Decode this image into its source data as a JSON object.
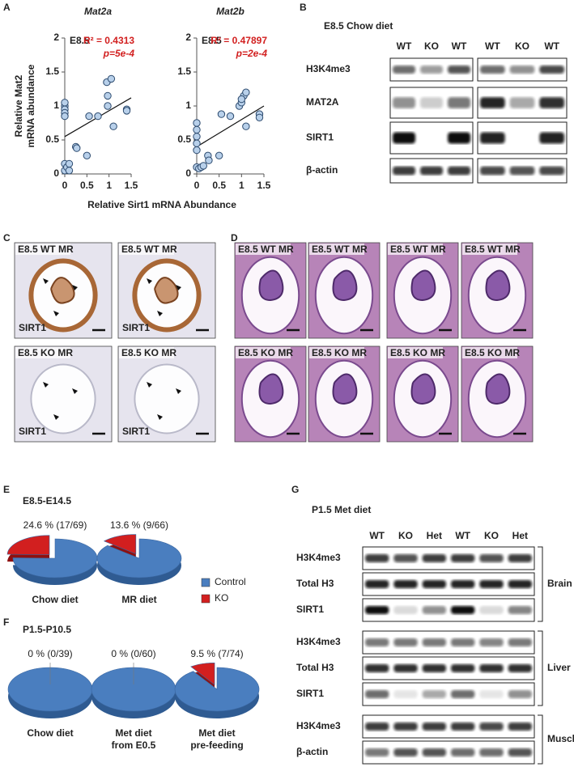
{
  "panel_labels": [
    "A",
    "B",
    "C",
    "D",
    "E",
    "F",
    "G"
  ],
  "chart_data": [
    {
      "type": "scatter",
      "title": "Mat2a",
      "annotation": "E8.5",
      "r2": "R² = 0.4313",
      "p": "p=5e-4",
      "ylabel_lines": [
        "Relative Mat2",
        "mRNA abundance"
      ],
      "xlabel": "Relative Sirt1 mRNA Abundance",
      "color": "#b8d0ea",
      "x": [
        0,
        0,
        0,
        0,
        0,
        0,
        0,
        0.05,
        0.1,
        0.1,
        0.25,
        0.27,
        0.5,
        0.55,
        0.75,
        0.95,
        0.97,
        1.05,
        0.97,
        1.1,
        1.4,
        1.4
      ],
      "values": [
        1.0,
        0.95,
        0.9,
        1.05,
        0.85,
        0.15,
        0.05,
        0.1,
        0.15,
        0.05,
        0.4,
        0.38,
        0.27,
        0.85,
        0.85,
        1.35,
        1.15,
        1.4,
        1.0,
        0.7,
        0.95,
        0.93
      ],
      "trendline": {
        "x": [
          0,
          1.5
        ],
        "y": [
          0.55,
          1.12
        ]
      },
      "xlim": [
        0,
        1.5
      ],
      "ylim": [
        0,
        2
      ],
      "xticks": [
        0,
        0.5,
        1,
        1.5
      ],
      "yticks": [
        0,
        0.5,
        1,
        1.5,
        2
      ]
    },
    {
      "type": "scatter",
      "title": "Mat2b",
      "annotation": "E8.5",
      "r2": "R² = 0.47897",
      "p": "p=2e-4",
      "color": "#b8d0ea",
      "x": [
        0,
        0,
        0,
        0,
        0,
        0,
        0.05,
        0.1,
        0.15,
        0.25,
        0.27,
        0.5,
        0.55,
        0.75,
        0.95,
        1.0,
        1.05,
        1.0,
        1.1,
        1.1,
        1.4,
        1.4
      ],
      "values": [
        0.75,
        0.65,
        0.55,
        0.45,
        0.35,
        0.1,
        0.08,
        0.1,
        0.12,
        0.27,
        0.2,
        0.27,
        0.88,
        0.85,
        1.0,
        1.05,
        1.15,
        1.1,
        1.2,
        0.7,
        0.88,
        0.83
      ],
      "trendline": {
        "x": [
          0,
          1.5
        ],
        "y": [
          0.4,
          1.0
        ]
      },
      "xlim": [
        0,
        1.5
      ],
      "ylim": [
        0,
        2
      ],
      "xticks": [
        0,
        0.5,
        1,
        1.5
      ],
      "yticks": [
        0,
        0.5,
        1,
        1.5,
        2
      ]
    },
    {
      "type": "pie",
      "title": "E8.5-E14.5",
      "label_lines": [
        "Chow diet"
      ],
      "categories": [
        "Control",
        "KO"
      ],
      "colors": [
        "#4a7ebf",
        "#d21f1f"
      ],
      "values": [
        75.4,
        24.6
      ],
      "value_labels": [
        null,
        "24.6 % (17/69)"
      ]
    },
    {
      "type": "pie",
      "label_lines": [
        "MR diet"
      ],
      "categories": [
        "Control",
        "KO"
      ],
      "legend": "right",
      "colors": [
        "#4a7ebf",
        "#d21f1f"
      ],
      "values": [
        86.4,
        13.6
      ],
      "value_labels": [
        null,
        "13.6 % (9/66)"
      ]
    },
    {
      "type": "pie",
      "title": "P1.5-P10.5",
      "label_lines": [
        "Chow diet"
      ],
      "categories": [
        "Control",
        "KO"
      ],
      "colors": [
        "#4a7ebf",
        "#d21f1f"
      ],
      "values": [
        100,
        0
      ],
      "value_labels": [
        null,
        "0 % (0/39)"
      ]
    },
    {
      "type": "pie",
      "label_lines": [
        "Met diet",
        "from E0.5"
      ],
      "categories": [
        "Control",
        "KO"
      ],
      "colors": [
        "#4a7ebf",
        "#d21f1f"
      ],
      "values": [
        100,
        0
      ],
      "value_labels": [
        null,
        "0 % (0/60)"
      ]
    },
    {
      "type": "pie",
      "label_lines": [
        "Met diet",
        "pre-feeding"
      ],
      "categories": [
        "Control",
        "KO"
      ],
      "colors": [
        "#4a7ebf",
        "#d21f1f"
      ],
      "values": [
        90.5,
        9.5
      ],
      "value_labels": [
        null,
        "9.5 % (7/74)"
      ]
    }
  ],
  "blot_b": {
    "title": "E8.5 Chow diet",
    "lanes": [
      "WT",
      "KO",
      "WT",
      "WT",
      "KO",
      "WT"
    ],
    "rows": [
      "H3K4me3",
      "MAT2A",
      "SIRT1",
      "β-actin"
    ]
  },
  "panel_c": {
    "images": [
      {
        "label": "E8.5 WT MR",
        "stain": "SIRT1"
      },
      {
        "label": "E8.5 WT MR",
        "stain": "SIRT1"
      },
      {
        "label": "E8.5 KO MR",
        "stain": "SIRT1"
      },
      {
        "label": "E8.5 KO MR",
        "stain": "SIRT1"
      }
    ]
  },
  "panel_d": {
    "images": [
      {
        "label": "E8.5 WT MR"
      },
      {
        "label": "E8.5 WT MR"
      },
      {
        "label": "E8.5 WT MR"
      },
      {
        "label": "E8.5 WT MR"
      },
      {
        "label": "E8.5 KO MR"
      },
      {
        "label": "E8.5 KO MR"
      },
      {
        "label": "E8.5 KO MR"
      },
      {
        "label": "E8.5 KO MR"
      }
    ]
  },
  "blot_g": {
    "title": "P1.5 Met diet",
    "lanes": [
      "WT",
      "KO",
      "Het",
      "WT",
      "KO",
      "Het"
    ],
    "rows": [
      "H3K4me3",
      "Total H3",
      "SIRT1",
      "H3K4me3",
      "Total H3",
      "SIRT1",
      "H3K4me3",
      "β-actin"
    ],
    "tissues": [
      "Brain",
      "Liver",
      "Muscle"
    ]
  }
}
